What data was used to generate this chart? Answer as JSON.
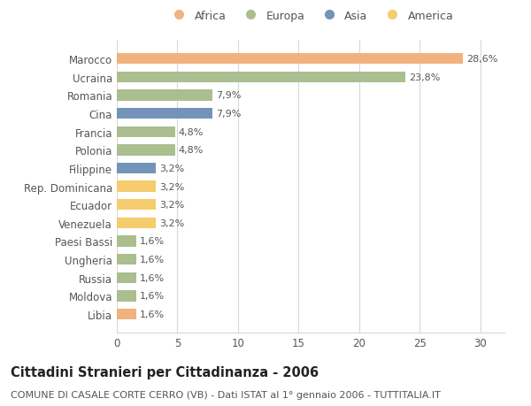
{
  "title": "Cittadini Stranieri per Cittadinanza - 2006",
  "subtitle": "COMUNE DI CASALE CORTE CERRO (VB) - Dati ISTAT al 1° gennaio 2006 - TUTTITALIA.IT",
  "categories": [
    "Marocco",
    "Ucraina",
    "Romania",
    "Cina",
    "Francia",
    "Polonia",
    "Filippine",
    "Rep. Dominicana",
    "Ecuador",
    "Venezuela",
    "Paesi Bassi",
    "Ungheria",
    "Russia",
    "Moldova",
    "Libia"
  ],
  "values": [
    28.6,
    23.8,
    7.9,
    7.9,
    4.8,
    4.8,
    3.2,
    3.2,
    3.2,
    3.2,
    1.6,
    1.6,
    1.6,
    1.6,
    1.6
  ],
  "labels": [
    "28,6%",
    "23,8%",
    "7,9%",
    "7,9%",
    "4,8%",
    "4,8%",
    "3,2%",
    "3,2%",
    "3,2%",
    "3,2%",
    "1,6%",
    "1,6%",
    "1,6%",
    "1,6%",
    "1,6%"
  ],
  "colors": [
    "#F2B27E",
    "#ABBE8F",
    "#ABBE8F",
    "#7294B8",
    "#ABBE8F",
    "#ABBE8F",
    "#7294B8",
    "#F5CC6E",
    "#F5CC6E",
    "#F5CC6E",
    "#ABBE8F",
    "#ABBE8F",
    "#ABBE8F",
    "#ABBE8F",
    "#F2B27E"
  ],
  "legend_labels": [
    "Africa",
    "Europa",
    "Asia",
    "America"
  ],
  "legend_colors": [
    "#F2B27E",
    "#ABBE8F",
    "#7294B8",
    "#F5CC6E"
  ],
  "xlim": [
    0,
    32
  ],
  "xticks": [
    0,
    5,
    10,
    15,
    20,
    25,
    30
  ],
  "background_color": "#ffffff",
  "grid_color": "#d8d8d8",
  "bar_height": 0.6,
  "title_fontsize": 10.5,
  "subtitle_fontsize": 8.0,
  "tick_fontsize": 8.5,
  "label_fontsize": 8.0,
  "legend_fontsize": 9.0
}
